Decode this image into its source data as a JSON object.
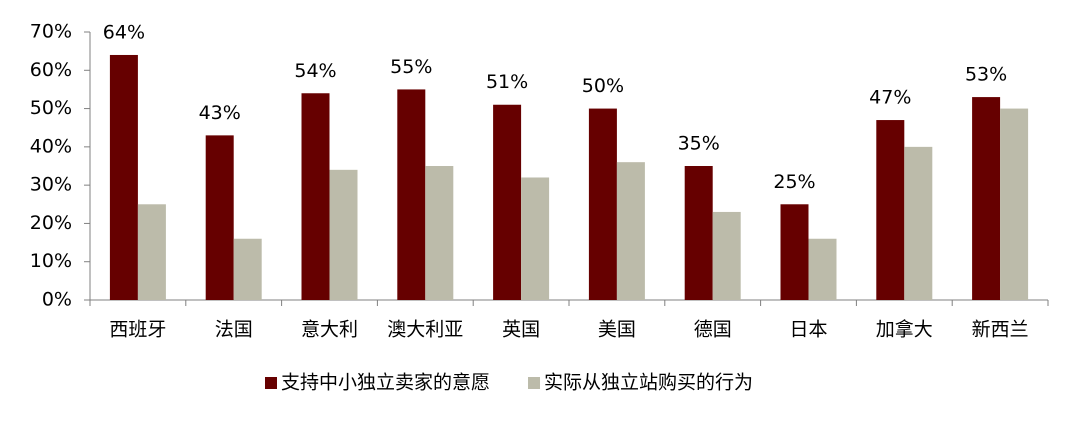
{
  "chart_data": {
    "type": "bar",
    "categories": [
      "西班牙",
      "法国",
      "意大利",
      "澳大利亚",
      "英国",
      "美国",
      "德国",
      "日本",
      "加拿大",
      "新西兰"
    ],
    "series": [
      {
        "name": "支持中小独立卖家的意愿",
        "color": "#660000",
        "values": [
          64,
          43,
          54,
          55,
          51,
          50,
          35,
          25,
          47,
          53
        ],
        "value_labels": [
          "64%",
          "43%",
          "54%",
          "55%",
          "51%",
          "50%",
          "35%",
          "25%",
          "47%",
          "53%"
        ]
      },
      {
        "name": "实际从独立站购买的行为",
        "color": "#bcbbaa",
        "values": [
          25,
          16,
          34,
          35,
          32,
          36,
          23,
          16,
          40,
          50
        ]
      }
    ],
    "ylim": [
      0,
      70
    ],
    "yticks": [
      {
        "value": 0,
        "label": "0%"
      },
      {
        "value": 10,
        "label": "10%"
      },
      {
        "value": 20,
        "label": "20%"
      },
      {
        "value": 30,
        "label": "30%"
      },
      {
        "value": 40,
        "label": "40%"
      },
      {
        "value": 50,
        "label": "50%"
      },
      {
        "value": 60,
        "label": "60%"
      },
      {
        "value": 70,
        "label": "70%"
      }
    ],
    "grid": false,
    "legend": "bottom"
  }
}
